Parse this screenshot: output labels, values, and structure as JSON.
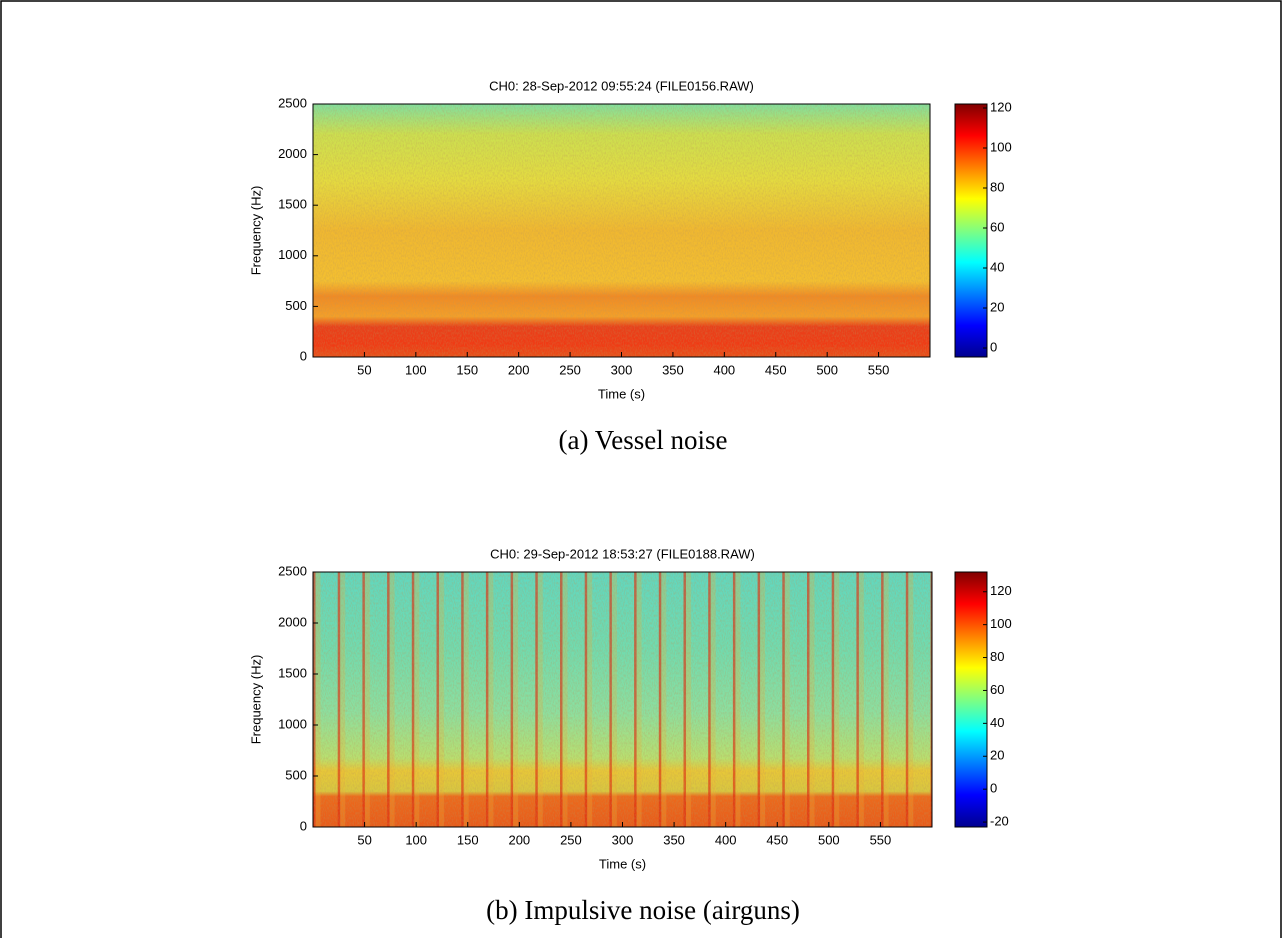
{
  "chart_data": [
    {
      "type": "heatmap",
      "title": "CH0: 28-Sep-2012 09:55:24 (FILE0156.RAW)",
      "xlabel": "Time (s)",
      "ylabel": "Frequency (Hz)",
      "xlim": [
        0,
        600
      ],
      "xticks": [
        50,
        100,
        150,
        200,
        250,
        300,
        350,
        400,
        450,
        500,
        550
      ],
      "ylim": [
        0,
        2500
      ],
      "yticks": [
        0,
        500,
        1000,
        1500,
        2000,
        2500
      ],
      "colorbar_lim": [
        -4.5,
        122
      ],
      "colorbar_ticks": [
        0,
        20,
        40,
        60,
        80,
        100,
        120
      ],
      "caption": "(a) Vessel noise"
    },
    {
      "type": "heatmap",
      "title": "CH0: 29-Sep-2012 18:53:27 (FILE0188.RAW)",
      "xlabel": "Time (s)",
      "ylabel": "Frequency (Hz)",
      "xlim": [
        0,
        600
      ],
      "xticks": [
        50,
        100,
        150,
        200,
        250,
        300,
        350,
        400,
        450,
        500,
        550
      ],
      "ylim": [
        0,
        2500
      ],
      "yticks": [
        0,
        500,
        1000,
        1500,
        2000,
        2500
      ],
      "colorbar_lim": [
        -23,
        132
      ],
      "colorbar_ticks": [
        -20,
        0,
        20,
        40,
        60,
        80,
        100,
        120
      ],
      "caption": "(b) Impulsive noise (airguns)"
    }
  ]
}
